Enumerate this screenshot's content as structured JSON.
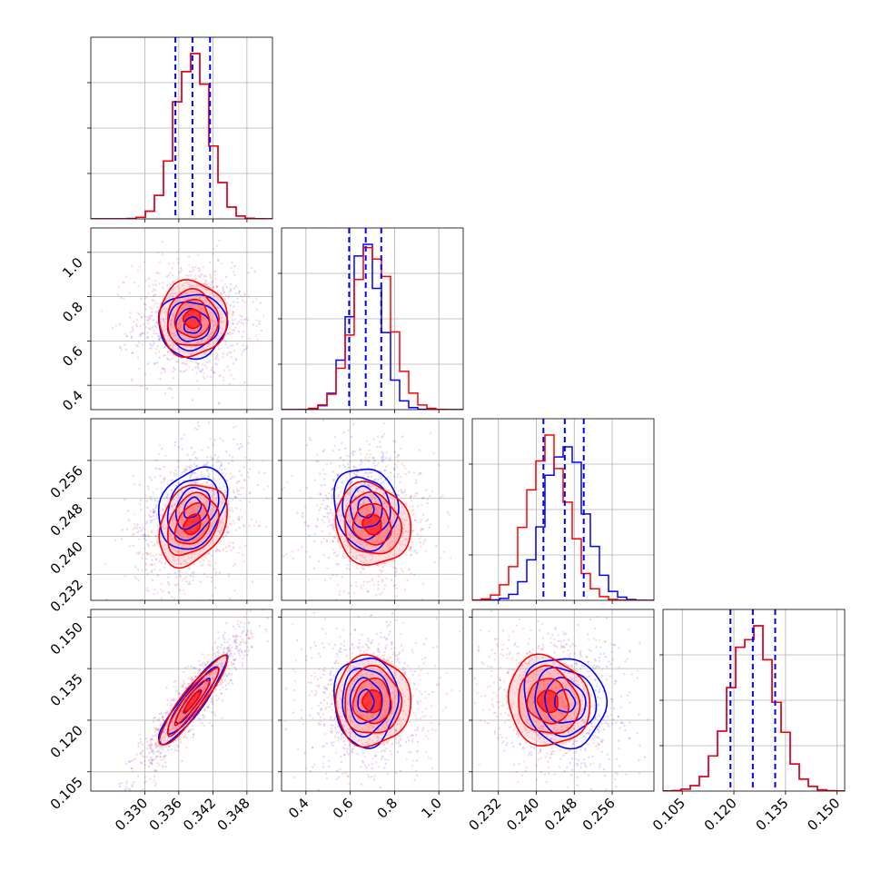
{
  "chart_data": {
    "type": "corner",
    "parameters": [
      {
        "ticks": [
          "0.330",
          "0.336",
          "0.342",
          "0.348"
        ],
        "tick_values": [
          0.33,
          0.336,
          0.342,
          0.348
        ],
        "range": [
          0.3205,
          0.3525
        ]
      },
      {
        "ticks": [
          "0.4",
          "0.6",
          "0.8",
          "1.0"
        ],
        "tick_values": [
          0.4,
          0.6,
          0.8,
          1.0
        ],
        "range": [
          0.29,
          1.11
        ]
      },
      {
        "ticks": [
          "0.232",
          "0.240",
          "0.248",
          "0.256"
        ],
        "tick_values": [
          0.232,
          0.24,
          0.248,
          0.256
        ],
        "range": [
          0.2265,
          0.2648
        ]
      },
      {
        "ticks": [
          "0.105",
          "0.120",
          "0.135",
          "0.150"
        ],
        "tick_values": [
          0.105,
          0.12,
          0.135,
          0.15
        ],
        "range": [
          0.0994,
          0.1522
        ]
      }
    ],
    "series": [
      {
        "color": "#0000ff",
        "means": [
          0.3384,
          0.67,
          0.246,
          0.1255
        ],
        "sigmas": [
          0.003,
          0.072,
          0.0043,
          0.0065
        ]
      },
      {
        "color": "#ff0000",
        "means": [
          0.3384,
          0.7,
          0.2425,
          0.1255
        ],
        "sigmas": [
          0.003,
          0.085,
          0.0043,
          0.0065
        ]
      }
    ],
    "quantile_lines": {
      "color": "#0000ff",
      "values": [
        [
          0.3354,
          0.3384,
          0.3415
        ],
        [
          0.595,
          0.67,
          0.74
        ],
        [
          0.2415,
          0.246,
          0.25
        ],
        [
          0.119,
          0.1255,
          0.132
        ]
      ]
    },
    "grid": true
  }
}
